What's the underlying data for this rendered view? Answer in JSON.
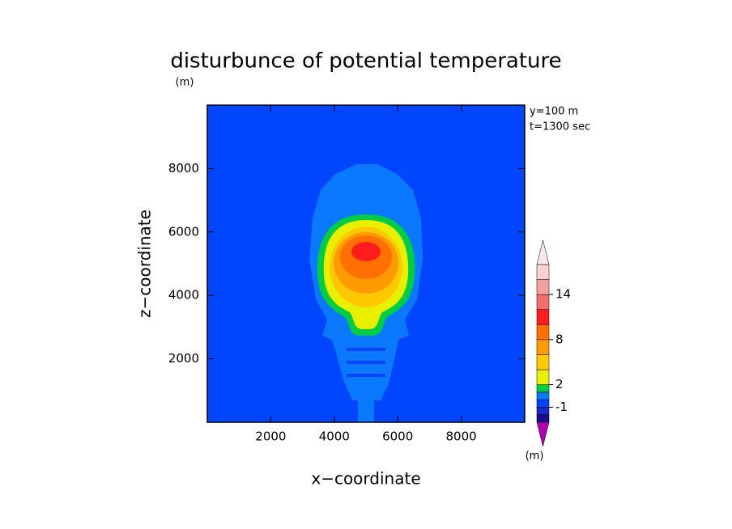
{
  "chart_data": {
    "type": "contour",
    "title": "disturbunce of potential temperature",
    "title_unit": "(m)",
    "annotations": [
      "y=100 m",
      "t=1300 sec"
    ],
    "x_label": "x−coordinate",
    "y_label": "z−coordinate",
    "xlim": [
      0,
      10000
    ],
    "xticks": [
      2000,
      4000,
      6000,
      8000
    ],
    "ylim": [
      0,
      10000
    ],
    "yticks": [
      2000,
      4000,
      6000,
      8000
    ],
    "colorbar": {
      "lim": [
        -3,
        18
      ],
      "levels": [
        -3,
        -2,
        -1,
        0,
        1,
        2,
        4,
        6,
        8,
        10,
        12,
        14,
        16,
        18
      ],
      "colors": [
        "#1e0a8c",
        "#1c28c8",
        "#0046ff",
        "#0a78ff",
        "#00cc44",
        "#e8f000",
        "#ffc800",
        "#ff9b00",
        "#ff7000",
        "#ff1e1e",
        "#f06e6e",
        "#f5a0a0",
        "#fbd2d2"
      ],
      "under_color": "#b000b0",
      "over_color": "#fbe8e8",
      "ticks": [
        -1,
        2,
        8,
        14
      ],
      "unit": "(m)"
    }
  }
}
